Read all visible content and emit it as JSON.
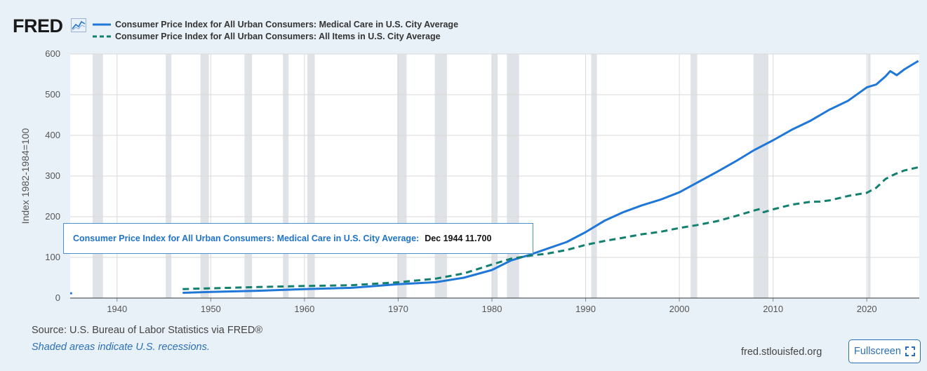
{
  "header": {
    "logo_text": "FRED",
    "logo_icon": "line-chart-icon"
  },
  "tooltip": {
    "series": "Consumer Price Index for All Urban Consumers: Medical Care in U.S. City Average:",
    "value": "Dec 1944 11.700"
  },
  "footer": {
    "source": "Source: U.S. Bureau of Labor Statistics via FRED®",
    "recessions_note": "Shaded areas indicate U.S. recessions.",
    "site": "fred.stlouisfed.org",
    "fullscreen_label": "Fullscreen",
    "fullscreen_icon": "expand-icon"
  },
  "colors": {
    "medical": "#1f77d8",
    "all_items": "#13806f",
    "recession": "#dfe3e7",
    "grid": "#d9d9d9",
    "background": "#e9f1f8"
  },
  "chart_data": {
    "type": "line",
    "title": "",
    "ylabel": "Index 1982-1984=100",
    "xlabel": "",
    "xlim": [
      1935.0,
      2025.6
    ],
    "ylim": [
      0,
      600
    ],
    "x_ticks": [
      "1940",
      "1950",
      "1960",
      "1970",
      "1980",
      "1990",
      "2000",
      "2010",
      "2020"
    ],
    "y_ticks": [
      "0",
      "100",
      "200",
      "300",
      "400",
      "500",
      "600"
    ],
    "grid": true,
    "legend_position": "top-left",
    "recessions": [
      [
        1937.4,
        1938.5
      ],
      [
        1945.2,
        1945.8
      ],
      [
        1948.9,
        1949.8
      ],
      [
        1953.6,
        1954.4
      ],
      [
        1957.7,
        1958.3
      ],
      [
        1960.3,
        1961.1
      ],
      [
        1969.9,
        1970.9
      ],
      [
        1973.9,
        1975.2
      ],
      [
        1980.0,
        1980.6
      ],
      [
        1981.6,
        1982.9
      ],
      [
        1990.6,
        1991.2
      ],
      [
        2001.2,
        2001.9
      ],
      [
        2007.9,
        2009.5
      ],
      [
        2020.1,
        2020.4
      ]
    ],
    "series": [
      {
        "name": "Consumer Price Index for All Urban Consumers: Medical Care in U.S. City Average",
        "style": "solid",
        "color": "#1f77d8",
        "segments": [
          [
            [
              1935.0,
              11.7
            ],
            [
              1935.2,
              11.7
            ]
          ],
          [
            [
              1947,
              13
            ],
            [
              1950,
              15
            ],
            [
              1955,
              18
            ],
            [
              1960,
              22
            ],
            [
              1965,
              25.2
            ],
            [
              1970,
              34
            ],
            [
              1974,
              39
            ],
            [
              1977,
              50
            ],
            [
              1980,
              69
            ],
            [
              1982,
              92
            ],
            [
              1984,
              106
            ],
            [
              1986,
              122
            ],
            [
              1988,
              138
            ],
            [
              1990,
              162
            ],
            [
              1992,
              190
            ],
            [
              1994,
              211
            ],
            [
              1996,
              228
            ],
            [
              1998,
              242
            ],
            [
              2000,
              260
            ],
            [
              2002,
              285
            ],
            [
              2004,
              310
            ],
            [
              2006,
              336
            ],
            [
              2008,
              364
            ],
            [
              2010,
              388
            ],
            [
              2012,
              414
            ],
            [
              2014,
              436
            ],
            [
              2016,
              463
            ],
            [
              2018,
              485
            ],
            [
              2020,
              518
            ],
            [
              2021,
              525
            ],
            [
              2022,
              545
            ],
            [
              2022.5,
              558
            ],
            [
              2023.2,
              548
            ],
            [
              2024,
              562
            ],
            [
              2025.5,
              583
            ]
          ]
        ]
      },
      {
        "name": "Consumer Price Index for All Urban Consumers: All Items in U.S. City Average",
        "style": "dashed",
        "color": "#13806f",
        "segments": [
          [
            [
              1947,
              22
            ],
            [
              1950,
              24
            ],
            [
              1955,
              27
            ],
            [
              1960,
              29.6
            ],
            [
              1965,
              31.5
            ],
            [
              1970,
              38.8
            ],
            [
              1974,
              47.8
            ],
            [
              1977,
              60.6
            ],
            [
              1980,
              82.4
            ],
            [
              1982,
              96.5
            ],
            [
              1984,
              103.9
            ],
            [
              1986,
              109.6
            ],
            [
              1988,
              118.3
            ],
            [
              1990,
              130.7
            ],
            [
              1992,
              140.3
            ],
            [
              1994,
              148.2
            ],
            [
              1996,
              156.9
            ],
            [
              1998,
              163
            ],
            [
              2000,
              172.2
            ],
            [
              2002,
              179.9
            ],
            [
              2004,
              188.9
            ],
            [
              2006,
              201.6
            ],
            [
              2008,
              215.3
            ],
            [
              2008.6,
              219
            ],
            [
              2009,
              211
            ],
            [
              2010,
              218.1
            ],
            [
              2012,
              229.6
            ],
            [
              2014,
              236.7
            ],
            [
              2015,
              237
            ],
            [
              2016,
              240
            ],
            [
              2018,
              251.1
            ],
            [
              2020,
              258.8
            ],
            [
              2021,
              271
            ],
            [
              2022,
              292.7
            ],
            [
              2023,
              304.7
            ],
            [
              2024,
              313.7
            ],
            [
              2025.5,
              321.5
            ]
          ]
        ]
      }
    ]
  }
}
